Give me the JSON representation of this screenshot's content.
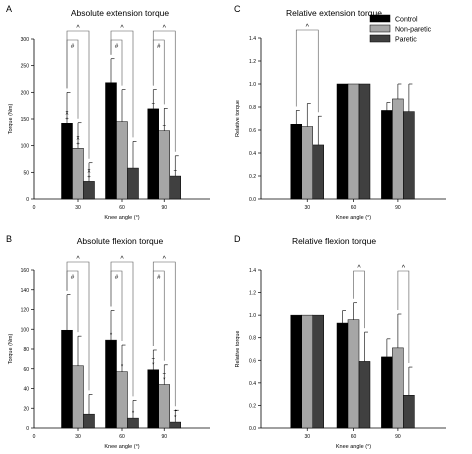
{
  "figure": {
    "legend": {
      "placement": "top-right",
      "entries": [
        {
          "name": "Control",
          "color": "#000000"
        },
        {
          "name": "Non-paretic",
          "color": "#a6a6a6"
        },
        {
          "name": "Paretic",
          "color": "#404040"
        }
      ]
    }
  },
  "chart_data": [
    {
      "panel": "A",
      "type": "bar",
      "title": "Absolute extension torque",
      "xlabel": "Knee angle (°)",
      "ylabel": "Torque (Nm)",
      "ylim": [
        0,
        300
      ],
      "yticks": [
        0,
        50,
        100,
        150,
        200,
        250,
        300
      ],
      "xaxis_origin_label": "0",
      "categories": [
        "30",
        "60",
        "90"
      ],
      "series": [
        {
          "name": "Control",
          "values": [
            142,
            218,
            169
          ],
          "errors": [
            58,
            45,
            36
          ]
        },
        {
          "name": "Non-paretic",
          "values": [
            95,
            145,
            128
          ],
          "errors": [
            48,
            60,
            42
          ]
        },
        {
          "name": "Paretic",
          "values": [
            33,
            58,
            43
          ],
          "errors": [
            35,
            50,
            38
          ]
        }
      ],
      "brackets": [
        {
          "group": 0,
          "from": 0,
          "to": 2,
          "label": "^"
        },
        {
          "group": 0,
          "from": 0,
          "to": 1,
          "label": "#"
        },
        {
          "group": 1,
          "from": 0,
          "to": 2,
          "label": "^"
        },
        {
          "group": 1,
          "from": 0,
          "to": 1,
          "label": "#"
        },
        {
          "group": 2,
          "from": 0,
          "to": 2,
          "label": "^"
        },
        {
          "group": 2,
          "from": 0,
          "to": 1,
          "label": "#"
        }
      ],
      "annotations": [
        {
          "group": 0,
          "bar": 0,
          "symbols": [
            "x",
            "+"
          ]
        },
        {
          "group": 0,
          "bar": 1,
          "symbols": [
            "x",
            "+"
          ]
        },
        {
          "group": 0,
          "bar": 2,
          "symbols": [
            "x",
            "+"
          ]
        },
        {
          "group": 2,
          "bar": 0,
          "symbols": [
            "+"
          ]
        },
        {
          "group": 2,
          "bar": 1,
          "symbols": [
            "+"
          ]
        },
        {
          "group": 2,
          "bar": 2,
          "symbols": [
            "+"
          ]
        }
      ]
    },
    {
      "panel": "B",
      "type": "bar",
      "title": "Absolute flexion torque",
      "xlabel": "Knee angle (°)",
      "ylabel": "Torque (Nm)",
      "ylim": [
        0,
        160
      ],
      "yticks": [
        0,
        20,
        40,
        60,
        80,
        100,
        120,
        140,
        160
      ],
      "xaxis_origin_label": "0",
      "categories": [
        "30",
        "60",
        "90"
      ],
      "series": [
        {
          "name": "Control",
          "values": [
            99,
            89,
            59
          ],
          "errors": [
            36,
            30,
            20
          ]
        },
        {
          "name": "Non-paretic",
          "values": [
            63,
            57,
            44
          ],
          "errors": [
            30,
            27,
            20
          ]
        },
        {
          "name": "Paretic",
          "values": [
            14,
            10,
            6
          ],
          "errors": [
            20,
            18,
            12
          ]
        }
      ],
      "brackets": [
        {
          "group": 0,
          "from": 0,
          "to": 2,
          "label": "^"
        },
        {
          "group": 0,
          "from": 0,
          "to": 1,
          "label": "#"
        },
        {
          "group": 1,
          "from": 0,
          "to": 2,
          "label": "^"
        },
        {
          "group": 1,
          "from": 0,
          "to": 1,
          "label": "#"
        },
        {
          "group": 2,
          "from": 0,
          "to": 2,
          "label": "^"
        },
        {
          "group": 2,
          "from": 0,
          "to": 1,
          "label": "#"
        }
      ],
      "annotations": [
        {
          "group": 1,
          "bar": 0,
          "symbols": [
            "*"
          ]
        },
        {
          "group": 1,
          "bar": 1,
          "symbols": [
            "*"
          ]
        },
        {
          "group": 1,
          "bar": 2,
          "symbols": [
            "*"
          ]
        },
        {
          "group": 2,
          "bar": 0,
          "symbols": [
            "+",
            "*"
          ]
        },
        {
          "group": 2,
          "bar": 1,
          "symbols": [
            "+",
            "*"
          ]
        },
        {
          "group": 2,
          "bar": 2,
          "symbols": [
            "+",
            "*"
          ]
        }
      ]
    },
    {
      "panel": "C",
      "type": "bar",
      "title": "Relative extension torque",
      "xlabel": "Knee angle (°)",
      "ylabel": "Relative torque",
      "ylim": [
        0,
        1.4
      ],
      "yticks": [
        0.0,
        0.2,
        0.4,
        0.6,
        0.8,
        1.0,
        1.2,
        1.4
      ],
      "xaxis_origin_label": "",
      "categories": [
        "30",
        "60",
        "90"
      ],
      "series": [
        {
          "name": "Control",
          "values": [
            0.65,
            1.0,
            0.77
          ],
          "errors": [
            0.12,
            0,
            0.07
          ]
        },
        {
          "name": "Non-paretic",
          "values": [
            0.63,
            1.0,
            0.87
          ],
          "errors": [
            0.2,
            0,
            0.13
          ]
        },
        {
          "name": "Paretic",
          "values": [
            0.47,
            1.0,
            0.76
          ],
          "errors": [
            0.25,
            0,
            0.24
          ]
        }
      ],
      "brackets": [
        {
          "group": 0,
          "from": 0,
          "to": 2,
          "label": "^"
        }
      ],
      "annotations": []
    },
    {
      "panel": "D",
      "type": "bar",
      "title": "Relative flexion torque",
      "xlabel": "Knee angle (°)",
      "ylabel": "Relative torque",
      "ylim": [
        0,
        1.4
      ],
      "yticks": [
        0.0,
        0.2,
        0.4,
        0.6,
        0.8,
        1.0,
        1.2,
        1.4
      ],
      "xaxis_origin_label": "",
      "categories": [
        "30",
        "60",
        "90"
      ],
      "series": [
        {
          "name": "Control",
          "values": [
            1.0,
            0.93,
            0.63
          ],
          "errors": [
            0,
            0.11,
            0.16
          ]
        },
        {
          "name": "Non-paretic",
          "values": [
            1.0,
            0.96,
            0.71
          ],
          "errors": [
            0,
            0.15,
            0.3
          ]
        },
        {
          "name": "Paretic",
          "values": [
            1.0,
            0.59,
            0.29
          ],
          "errors": [
            0,
            0.26,
            0.25
          ]
        }
      ],
      "brackets": [
        {
          "group": 1,
          "from": 1,
          "to": 2,
          "label": "^"
        },
        {
          "group": 2,
          "from": 1,
          "to": 2,
          "label": "^"
        }
      ],
      "annotations": []
    }
  ]
}
